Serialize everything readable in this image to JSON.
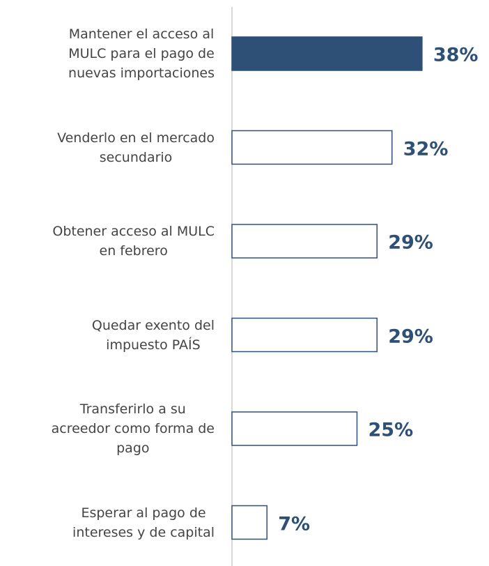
{
  "chart_data": {
    "type": "bar",
    "orientation": "horizontal",
    "categories": [
      "Mantener el acceso al\nMULC para el pago de\nnuevas importaciones",
      "Venderlo en el mercado\nsecundario",
      "Obtener acceso al MULC\nen febrero",
      "Quedar exento del\nimpuesto PAÍS",
      "Transferirlo a su\nacreedor como forma de\npago",
      "Esperar al pago de\nintereses y de capital"
    ],
    "values": [
      38,
      32,
      29,
      29,
      25,
      7
    ],
    "value_labels": [
      "38%",
      "32%",
      "29%",
      "29%",
      "25%",
      "7%"
    ],
    "colors": [
      "#2e5077",
      "#ffffff",
      "#ffffff",
      "#ffffff",
      "#ffffff",
      "#ffffff"
    ],
    "edge_color": "#2e5077",
    "xlim": [
      0,
      50
    ]
  }
}
